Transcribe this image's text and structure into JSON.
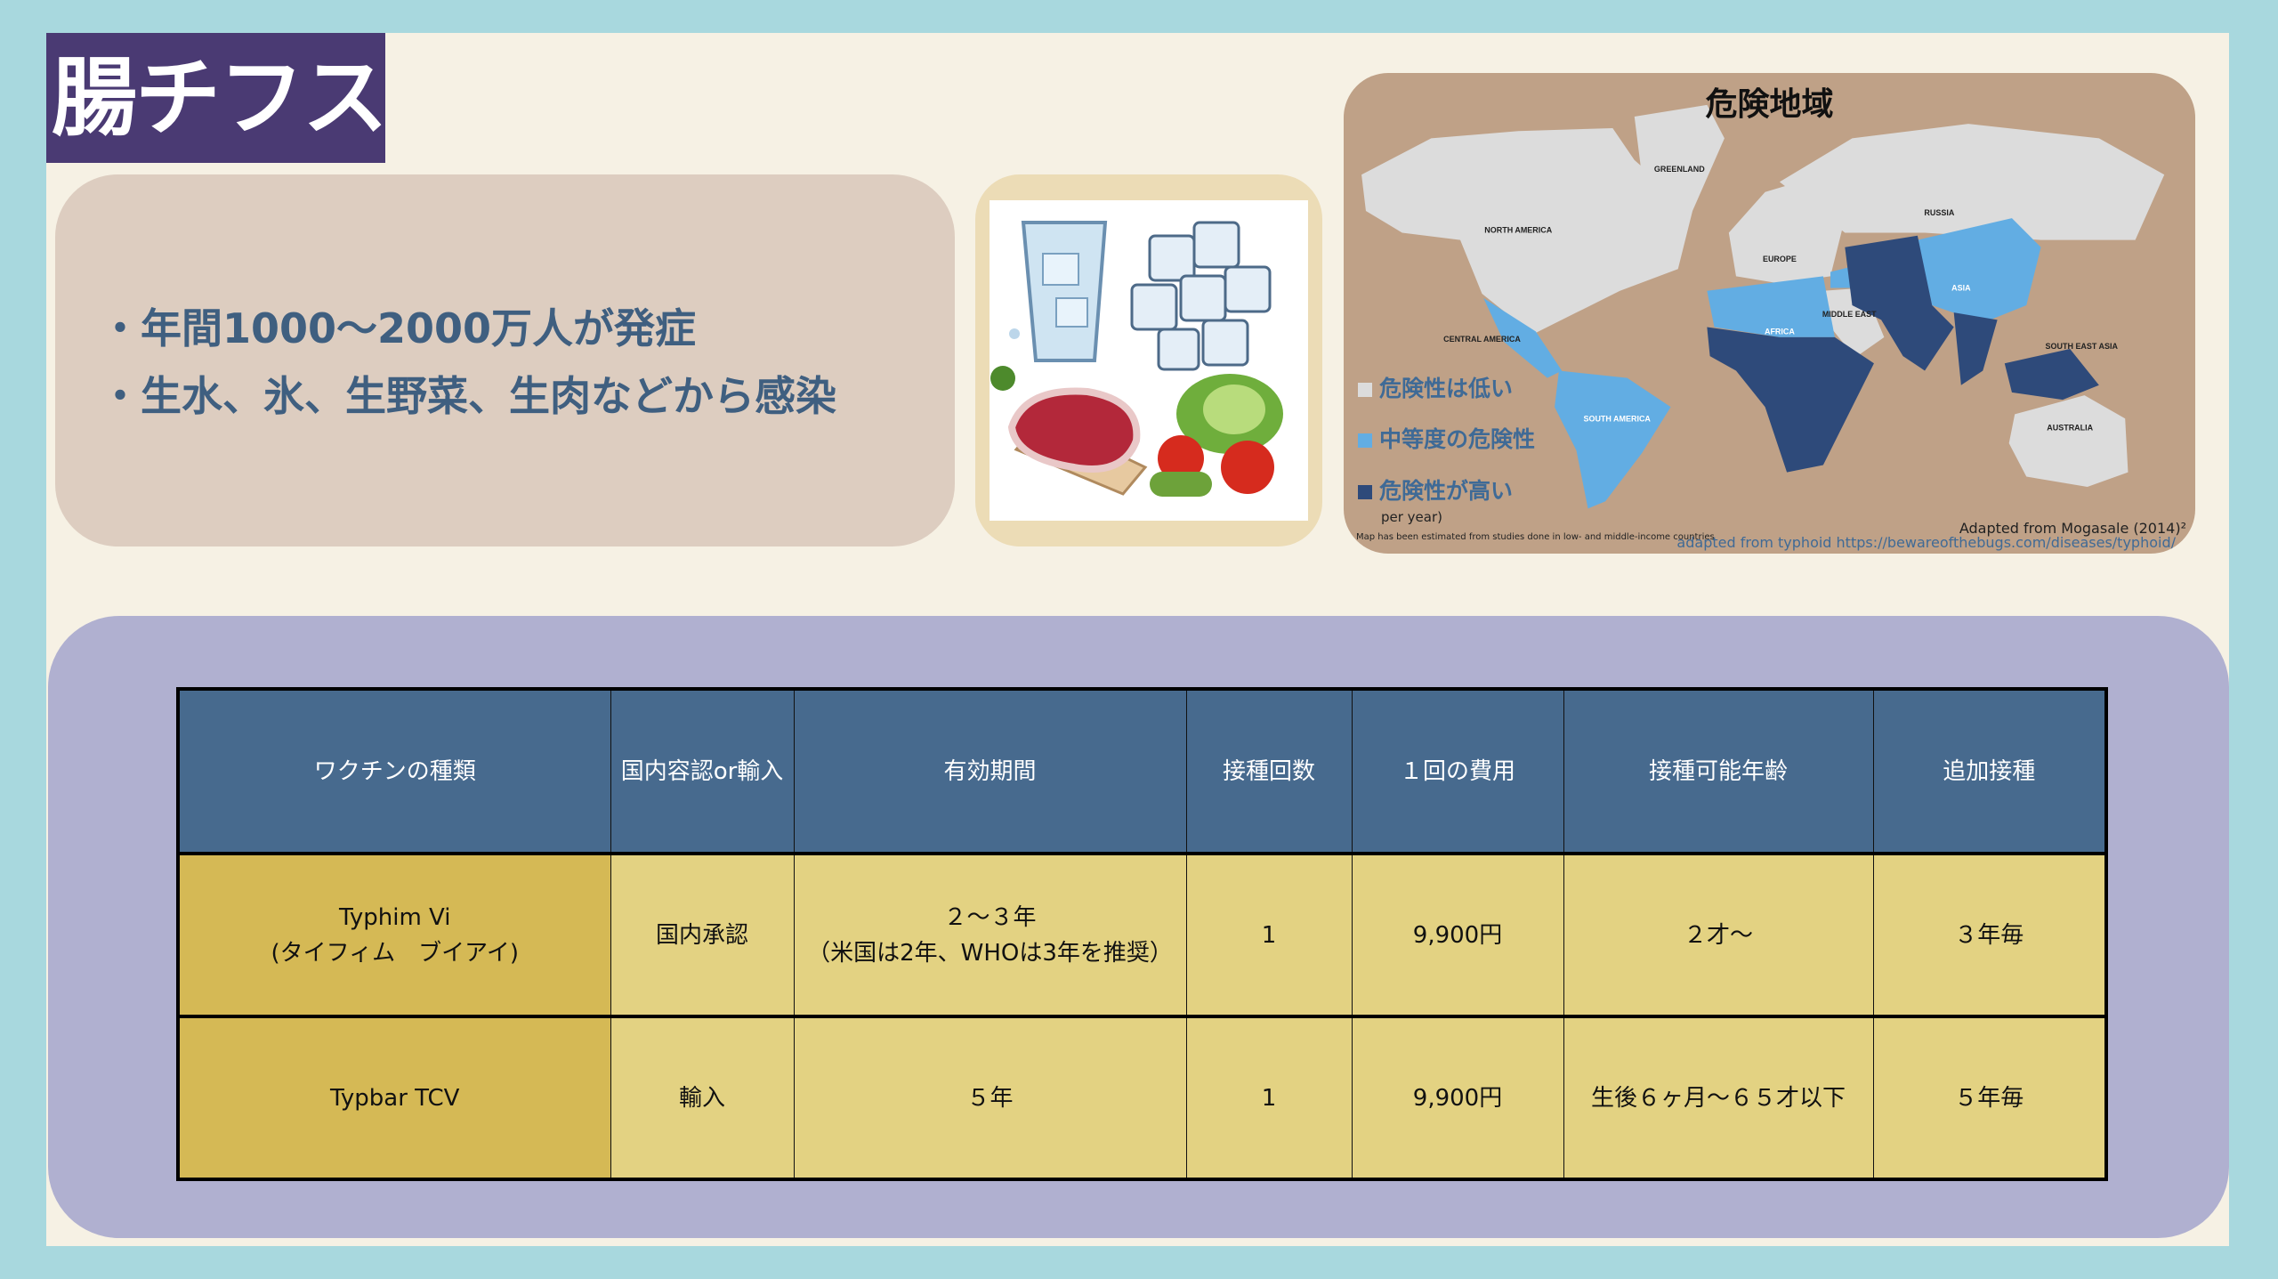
{
  "title": "腸チフス",
  "bullets": [
    "・年間1000～2000万人が発症",
    "・生水、氷、生野菜、生肉などから感染"
  ],
  "map": {
    "title": "危険地域",
    "regions": [
      "GREENLAND",
      "NORTH AMERICA",
      "CENTRAL AMERICA",
      "SOUTH AMERICA",
      "EUROPE",
      "RUSSIA",
      "AFRICA",
      "MIDDLE EAST",
      "ASIA",
      "SOUTH EAST ASIA",
      "AUSTRALIA"
    ],
    "legend": [
      {
        "label": "危険性は低い",
        "color": "#dcdcdc"
      },
      {
        "label": "中等度の危険性",
        "color": "#62ade3"
      },
      {
        "label": "危険性が高い",
        "color": "#2e4a7a"
      }
    ],
    "per_year": "per year)",
    "note": "Map has been estimated from studies done in low- and middle-income countries",
    "source": "Adapted from Mogasale (2014)²",
    "link": "adapted from typhoid https://bewareofthebugs.com/diseases/typhoid/"
  },
  "table": {
    "headers": [
      "ワクチンの種類",
      "国内容認or輸入",
      "有効期間",
      "接種回数",
      "１回の費用",
      "接種可能年齢",
      "追加接種"
    ],
    "rows": [
      {
        "name": "Typhim Vi",
        "name_sub": "(タイフィム　ブイアイ)",
        "status": "国内承認",
        "period": "２～３年",
        "period_sub": "（米国は2年、WHOは3年を推奨）",
        "doses": "1",
        "cost": "9,900円",
        "age": "２才～",
        "booster": "３年毎"
      },
      {
        "name": "Typbar TCV",
        "status": "輸入",
        "period": "５年",
        "doses": "1",
        "cost": "9,900円",
        "age": "生後６ヶ月～６５才以下",
        "booster": "５年毎"
      }
    ]
  }
}
